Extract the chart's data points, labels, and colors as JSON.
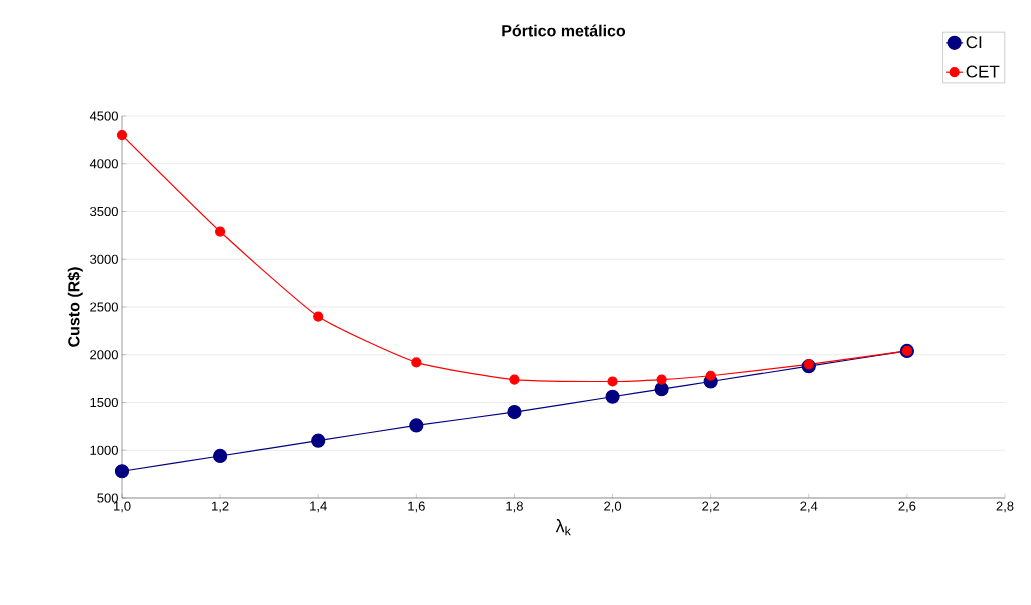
{
  "chart_data": {
    "type": "line",
    "title": "Pórtico metálico",
    "xlabel": "λ$_{k}$",
    "ylabel": "Custo (R$)",
    "x": [
      1.0,
      1.2,
      1.4,
      1.6,
      1.8,
      2.0,
      2.1,
      2.2,
      2.4,
      2.6
    ],
    "series": [
      {
        "name": "CI",
        "color": "#000080",
        "values": [
          780,
          940,
          1100,
          1260,
          1400,
          1560,
          1640,
          1720,
          1880,
          2040
        ]
      },
      {
        "name": "CET",
        "color": "#ff0000",
        "values": [
          4300,
          3290,
          2400,
          1920,
          1740,
          1720,
          1740,
          1780,
          1900,
          2040
        ]
      }
    ],
    "xlim": [
      1.0,
      2.8
    ],
    "ylim": [
      500,
      4500
    ],
    "xticks": [
      {
        "value": 1.0,
        "label": "1,0"
      },
      {
        "value": 1.2,
        "label": "1,2"
      },
      {
        "value": 1.4,
        "label": "1,4"
      },
      {
        "value": 1.6,
        "label": "1,6"
      },
      {
        "value": 1.8,
        "label": "1,8"
      },
      {
        "value": 2.0,
        "label": "2,0"
      },
      {
        "value": 2.2,
        "label": "2,2"
      },
      {
        "value": 2.4,
        "label": "2,4"
      },
      {
        "value": 2.6,
        "label": "2,6"
      },
      {
        "value": 2.8,
        "label": "2,8"
      }
    ],
    "yticks": [
      500,
      1000,
      1500,
      2000,
      2500,
      3000,
      3500,
      4000,
      4500
    ],
    "grid": "y",
    "legend": "top right",
    "marker": "circle",
    "line_style": "solid"
  }
}
